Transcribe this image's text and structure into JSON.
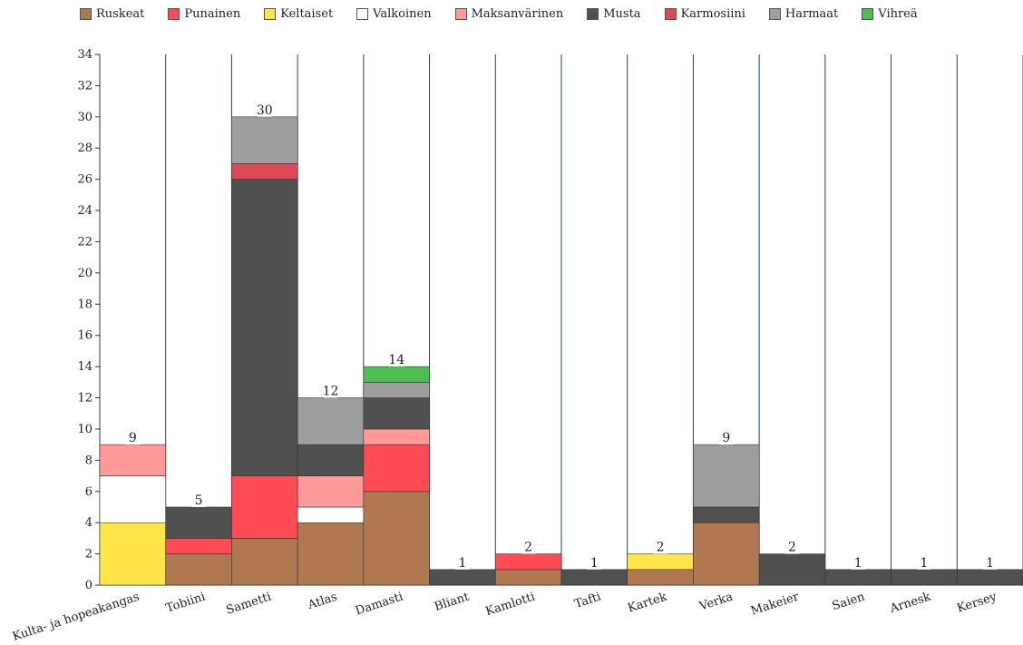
{
  "chart_data": {
    "type": "bar",
    "stacked": true,
    "categories": [
      "Kulta- ja hopeakangas",
      "Tobiini",
      "Sametti",
      "Atlas",
      "Damasti",
      "Bliant",
      "Kamlotti",
      "Tafti",
      "Kartek",
      "Verka",
      "Makeier",
      "Saien",
      "Arnesk",
      "Kersey"
    ],
    "totals": [
      9,
      5,
      30,
      12,
      14,
      1,
      2,
      1,
      2,
      9,
      2,
      1,
      1,
      1
    ],
    "ylim": [
      0,
      34
    ],
    "yticks": [
      0,
      2,
      4,
      6,
      8,
      10,
      12,
      14,
      16,
      18,
      20,
      22,
      24,
      26,
      28,
      30,
      32,
      34
    ],
    "legend_position": "top",
    "grid": "vertical category separators",
    "series": [
      {
        "name": "Ruskeat",
        "color": "#b07850",
        "values": [
          0,
          2,
          3,
          4,
          6,
          0,
          1,
          0,
          1,
          4,
          0,
          0,
          0,
          0
        ]
      },
      {
        "name": "Punainen",
        "color": "#ff4b55",
        "values": [
          0,
          1,
          4,
          0,
          3,
          0,
          1,
          0,
          0,
          0,
          0,
          0,
          0,
          0
        ]
      },
      {
        "name": "Keltaiset",
        "color": "#ffe54a",
        "values": [
          4,
          0,
          0,
          0,
          0,
          0,
          0,
          0,
          1,
          0,
          0,
          0,
          0,
          0
        ]
      },
      {
        "name": "Valkoinen",
        "color": "#ffffff",
        "values": [
          3,
          0,
          0,
          1,
          0,
          0,
          0,
          0,
          0,
          0,
          0,
          0,
          0,
          0
        ]
      },
      {
        "name": "Maksanvärinen",
        "color": "#ff9a9a",
        "values": [
          2,
          0,
          0,
          2,
          1,
          0,
          0,
          0,
          0,
          0,
          0,
          0,
          0,
          0
        ]
      },
      {
        "name": "Musta",
        "color": "#505050",
        "values": [
          0,
          2,
          19,
          2,
          2,
          1,
          0,
          1,
          0,
          1,
          2,
          1,
          1,
          1
        ]
      },
      {
        "name": "Karmosiini",
        "color": "#dd4a55",
        "values": [
          0,
          0,
          1,
          0,
          0,
          0,
          0,
          0,
          0,
          0,
          0,
          0,
          0,
          0
        ]
      },
      {
        "name": "Harmaat",
        "color": "#9e9e9e",
        "values": [
          0,
          0,
          3,
          3,
          1,
          0,
          0,
          0,
          0,
          4,
          0,
          0,
          0,
          0
        ]
      },
      {
        "name": "Vihreä",
        "color": "#4bbf50",
        "values": [
          0,
          0,
          0,
          0,
          1,
          0,
          0,
          0,
          0,
          0,
          0,
          0,
          0,
          0
        ]
      }
    ],
    "colors": {
      "separator": "#1f3f6a",
      "axis": "#333333",
      "bar_border": "#333333"
    }
  }
}
